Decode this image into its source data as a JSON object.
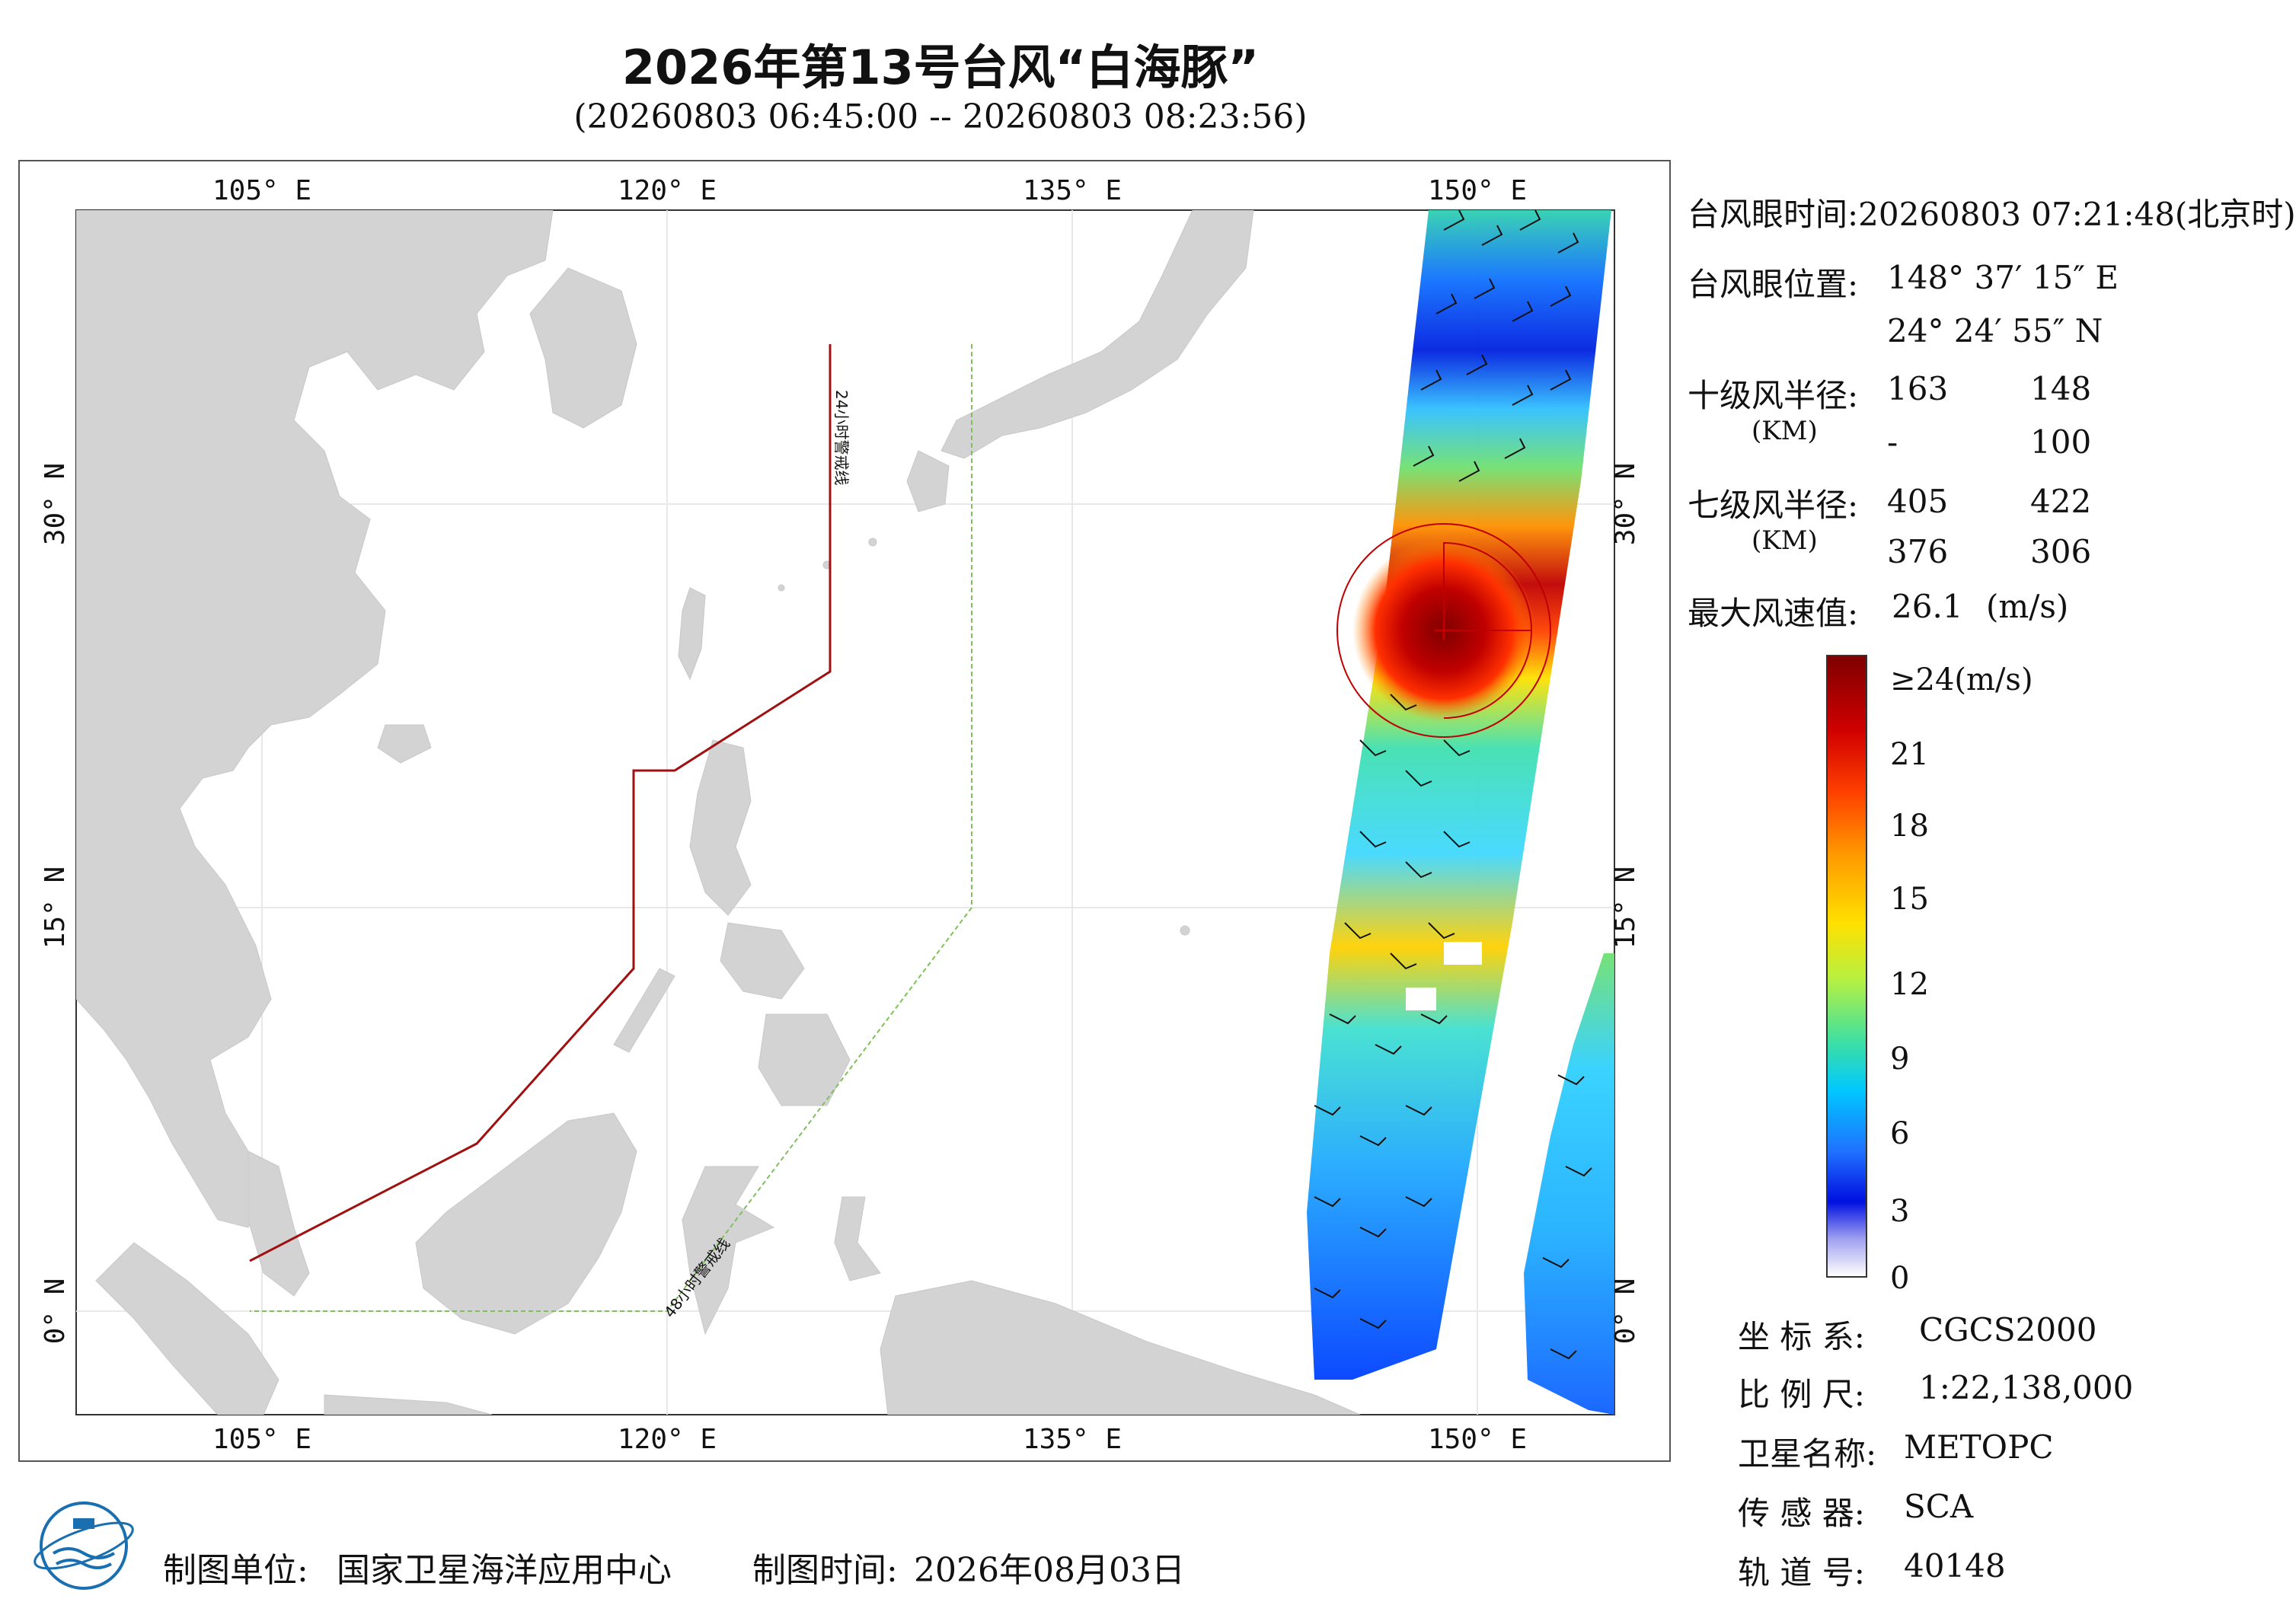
{
  "title": "2026年第13号台风“白海豚”",
  "subtitle": "(20260803 06:45:00 -- 20260803 08:23:56)",
  "map": {
    "lon_ticks": [
      "105° E",
      "120° E",
      "135° E",
      "150° E"
    ],
    "lat_ticks": [
      "30° N",
      "15° N",
      "0° N"
    ],
    "warning_line_24h": "24小时警戒线",
    "warning_line_48h": "48小时警戒线",
    "colors": {
      "land": "#d3d3d3",
      "sea": "#ffffff",
      "line_24h": "#a01010",
      "line_48h": "#7fc05a",
      "typhoon_circle": "#c00000"
    }
  },
  "info": {
    "eye_time_label": "台风眼时间:",
    "eye_time": "20260803 07:21:48(北京时)",
    "eye_pos_label": "台风眼位置:",
    "eye_lon": "148° 37′ 15″ E",
    "eye_lat": "24° 24′ 55″ N",
    "r10_label": "十级风半径:",
    "r10_unit": "(KM)",
    "r10_values": [
      "163",
      "148",
      "-",
      "100"
    ],
    "r7_label": "七级风半径:",
    "r7_unit": "(KM)",
    "r7_values": [
      "405",
      "422",
      "376",
      "306"
    ],
    "max_wind_label": "最大风速值:",
    "max_wind_value": "26.1",
    "max_wind_unit": "(m/s)"
  },
  "colorbar": {
    "top_label": "≥24(m/s)",
    "ticks": [
      "21",
      "18",
      "15",
      "12",
      "9",
      "6",
      "3",
      "0"
    ],
    "stops": [
      "#7f0000",
      "#d00000",
      "#ff4000",
      "#ff9900",
      "#ffe000",
      "#b8f040",
      "#40e0a0",
      "#00c8ff",
      "#2070ff",
      "#0010e0",
      "#a0a0f0",
      "#ffffff"
    ]
  },
  "meta": {
    "crs_label": "坐 标 系:",
    "crs": "CGCS2000",
    "scale_label": "比 例 尺:",
    "scale": "1:22,138,000",
    "satellite_label": "卫星名称:",
    "satellite": "METOPC",
    "sensor_label": "传 感 器:",
    "sensor": "SCA",
    "orbit_label": "轨 道 号:",
    "orbit": "40148"
  },
  "footer": {
    "producer_label": "制图单位:",
    "producer": "国家卫星海洋应用中心",
    "date_label": "制图时间:",
    "date": "2026年08月03日"
  }
}
